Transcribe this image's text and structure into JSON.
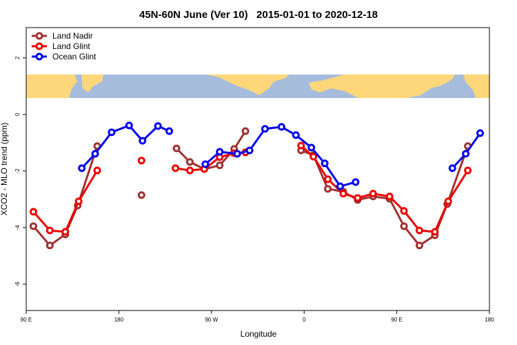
{
  "chart_data": {
    "type": "line",
    "title": "45N-60N June (Ver 10)   2015-01-01 to 2020-12-18",
    "x_label": "Longitude",
    "y_label": "XCO2 - MLO trend (ppm)",
    "xlim": [
      90,
      540
    ],
    "xticks": [
      {
        "value": 90,
        "label": "90 E"
      },
      180,
      {
        "value": 270,
        "label": "90 W"
      },
      {
        "value": 360,
        "label": "0"
      },
      {
        "value": 450,
        "label": "90 E"
      },
      {
        "value": 540,
        "label": "180"
      }
    ],
    "ylim": [
      -6.93,
      3.07
    ],
    "yticks": [
      -6,
      -4,
      -2,
      0,
      2
    ],
    "legend": "top-left",
    "series": [
      {
        "name": "Land Nadir",
        "color": "#a03030",
        "x": [
          97,
          113,
          128,
          140,
          159,
          null,
          202,
          null,
          236,
          249,
          263,
          278,
          292,
          303,
          null,
          357,
          369,
          383,
          398,
          412,
          427,
          443,
          457,
          472,
          487,
          499,
          519
        ],
        "values": [
          -3.95,
          -4.63,
          -4.24,
          -3.22,
          -1.12,
          null,
          -2.85,
          null,
          -1.2,
          -1.68,
          -1.93,
          -1.8,
          -1.22,
          -0.59,
          null,
          -1.27,
          -1.44,
          -2.63,
          -2.73,
          -3.02,
          -2.9,
          -2.98,
          -3.95,
          -4.63,
          -4.27,
          -3.17,
          -1.12
        ]
      },
      {
        "name": "Land Glint",
        "color": "#ee0000",
        "x": [
          97,
          113,
          128,
          141,
          159,
          null,
          202,
          null,
          235,
          249,
          263,
          278,
          292,
          303,
          null,
          357,
          369,
          383,
          398,
          412,
          427,
          443,
          457,
          472,
          487,
          500,
          519
        ],
        "values": [
          -3.44,
          -4.1,
          -4.15,
          -3.07,
          -1.98,
          null,
          -1.63,
          null,
          -1.9,
          -1.98,
          -1.93,
          -1.51,
          -1.37,
          -1.34,
          null,
          -1.1,
          -1.49,
          -2.29,
          -2.8,
          -2.95,
          -2.8,
          -2.9,
          -3.41,
          -4.1,
          -4.15,
          -3.07,
          -1.98
        ]
      },
      {
        "name": "Ocean Glint",
        "color": "#0000ee",
        "x": [
          144,
          157,
          173,
          190,
          203,
          218,
          229,
          null,
          264,
          278,
          295,
          307,
          322,
          338,
          352,
          367,
          380,
          395,
          410,
          null,
          504,
          517,
          531
        ],
        "values": [
          -1.9,
          -1.39,
          -0.63,
          -0.39,
          -0.93,
          -0.41,
          -0.59,
          null,
          -1.76,
          -1.32,
          -1.39,
          -1.27,
          -0.51,
          -0.44,
          -0.73,
          -1.17,
          -1.73,
          -2.54,
          -2.39,
          null,
          -1.9,
          -1.39,
          -0.66
        ]
      }
    ]
  }
}
